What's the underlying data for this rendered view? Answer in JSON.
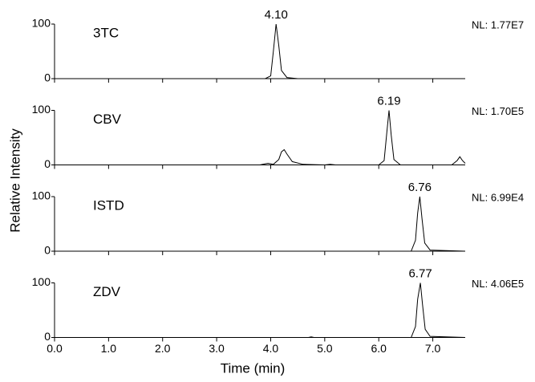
{
  "axes": {
    "ylabel": "Relative Intensity",
    "xlabel": "Time (min)",
    "xlim": [
      0,
      7.6
    ],
    "xticks": [
      {
        "value": 0,
        "label": "0.0"
      },
      {
        "value": 1,
        "label": "1.0"
      },
      {
        "value": 2,
        "label": "2.0"
      },
      {
        "value": 3,
        "label": "3.0"
      },
      {
        "value": 4,
        "label": "4.0"
      },
      {
        "value": 5,
        "label": "5.0"
      },
      {
        "value": 6,
        "label": "6.0"
      },
      {
        "value": 7,
        "label": "7.0"
      }
    ]
  },
  "chart_data": [
    {
      "type": "line",
      "label": "3TC",
      "note": "NL: 1.77E7",
      "peak": {
        "value": 4.1,
        "label": "4.10"
      },
      "ylim": [
        0,
        100
      ],
      "yticks": [
        0,
        100
      ],
      "color": "#000000",
      "x": [
        0,
        3.9,
        4.0,
        4.05,
        4.1,
        4.15,
        4.2,
        4.3,
        4.5,
        7.6
      ],
      "values": [
        0,
        0,
        5,
        50,
        100,
        60,
        15,
        2,
        0,
        0
      ]
    },
    {
      "type": "line",
      "label": "CBV",
      "note": "NL: 1.70E5",
      "peak": {
        "value": 6.19,
        "label": "6.19"
      },
      "ylim": [
        0,
        100
      ],
      "yticks": [
        0,
        100
      ],
      "color": "#000000",
      "x": [
        0,
        3.8,
        3.9,
        3.95,
        4.05,
        4.15,
        4.2,
        4.25,
        4.3,
        4.4,
        4.6,
        5.0,
        5.1,
        5.2,
        6.0,
        6.1,
        6.15,
        6.19,
        6.23,
        6.28,
        6.4,
        7.35,
        7.45,
        7.5,
        7.55,
        7.6
      ],
      "values": [
        0,
        0,
        2,
        3,
        1,
        10,
        24,
        28,
        20,
        6,
        1,
        0,
        1,
        0,
        0,
        8,
        60,
        100,
        55,
        10,
        0,
        0,
        8,
        15,
        8,
        3
      ]
    },
    {
      "type": "line",
      "label": "ISTD",
      "note": "NL: 6.99E4",
      "peak": {
        "value": 6.76,
        "label": "6.76"
      },
      "ylim": [
        0,
        100
      ],
      "yticks": [
        0,
        100
      ],
      "color": "#000000",
      "x": [
        0,
        6.6,
        6.68,
        6.72,
        6.76,
        6.8,
        6.85,
        6.95,
        7.6
      ],
      "values": [
        0,
        0,
        20,
        70,
        100,
        60,
        15,
        2,
        0
      ]
    },
    {
      "type": "line",
      "label": "ZDV",
      "note": "NL: 4.06E5",
      "peak": {
        "value": 6.77,
        "label": "6.77"
      },
      "ylim": [
        0,
        100
      ],
      "yticks": [
        0,
        100
      ],
      "color": "#000000",
      "x": [
        0,
        4.7,
        4.75,
        4.8,
        6.6,
        6.68,
        6.72,
        6.77,
        6.81,
        6.86,
        6.95,
        7.6
      ],
      "values": [
        0,
        0,
        1,
        0,
        0,
        20,
        70,
        100,
        60,
        15,
        2,
        0
      ]
    }
  ]
}
